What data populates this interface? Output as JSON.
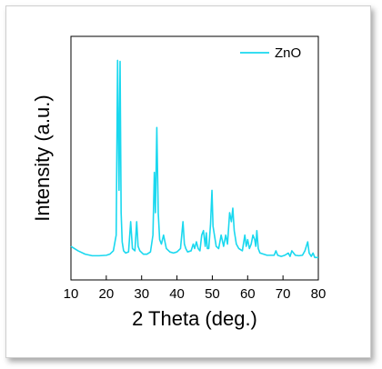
{
  "colors": {
    "series": "#1ad8ef",
    "axis": "#000000"
  },
  "chart_data": {
    "type": "line",
    "title": "",
    "xlabel": "2 Theta (deg.)",
    "ylabel": "Intensity (a.u.)",
    "xlim": [
      10,
      80
    ],
    "ylim": [
      0,
      1
    ],
    "x_ticks": [
      10,
      20,
      30,
      40,
      50,
      60,
      70,
      80
    ],
    "y_ticks": [],
    "grid": false,
    "legend_position": "top-right",
    "series": [
      {
        "name": "ZnO",
        "x": [
          10,
          12,
          14,
          16,
          18,
          20,
          21,
          22,
          22.8,
          23.2,
          23.6,
          23.9,
          24.2,
          24.5,
          24.9,
          25.5,
          26.3,
          26.9,
          27.4,
          28.1,
          28.6,
          29.0,
          29.5,
          30.5,
          31.5,
          32.5,
          33.2,
          33.6,
          33.9,
          34.3,
          34.7,
          35.1,
          35.6,
          36.2,
          37.0,
          38.0,
          39.0,
          40.0,
          41.0,
          41.7,
          42.1,
          42.5,
          43.0,
          44.0,
          44.6,
          45.0,
          45.5,
          46.0,
          46.5,
          47.0,
          47.5,
          48.0,
          48.3,
          48.6,
          49.0,
          49.5,
          49.9,
          50.2,
          50.6,
          51.1,
          51.8,
          52.5,
          53.2,
          53.8,
          54.3,
          54.9,
          55.4,
          55.8,
          56.2,
          56.8,
          57.5,
          58.5,
          59.2,
          59.6,
          60.0,
          60.5,
          61.0,
          61.5,
          62.0,
          62.3,
          62.6,
          63.0,
          63.5,
          64.5,
          65.5,
          66.5,
          67.5,
          68.0,
          68.5,
          69.5,
          70.5,
          71.5,
          72.0,
          72.5,
          73.5,
          74.5,
          75.5,
          76.2,
          76.6,
          77.0,
          77.4,
          78.0,
          78.5,
          79.0,
          80.0
        ],
        "y": [
          0.15,
          0.13,
          0.115,
          0.108,
          0.108,
          0.11,
          0.115,
          0.13,
          0.2,
          0.98,
          0.4,
          0.975,
          0.3,
          0.17,
          0.13,
          0.12,
          0.125,
          0.26,
          0.14,
          0.13,
          0.26,
          0.15,
          0.13,
          0.115,
          0.115,
          0.125,
          0.2,
          0.48,
          0.3,
          0.68,
          0.3,
          0.18,
          0.16,
          0.2,
          0.14,
          0.125,
          0.12,
          0.125,
          0.14,
          0.26,
          0.16,
          0.14,
          0.125,
          0.13,
          0.16,
          0.14,
          0.17,
          0.14,
          0.13,
          0.2,
          0.22,
          0.15,
          0.21,
          0.14,
          0.14,
          0.25,
          0.4,
          0.24,
          0.2,
          0.15,
          0.14,
          0.2,
          0.15,
          0.2,
          0.16,
          0.3,
          0.26,
          0.32,
          0.22,
          0.16,
          0.14,
          0.13,
          0.2,
          0.15,
          0.18,
          0.14,
          0.16,
          0.2,
          0.18,
          0.15,
          0.22,
          0.14,
          0.12,
          0.115,
          0.11,
          0.11,
          0.11,
          0.13,
          0.11,
          0.105,
          0.11,
          0.12,
          0.105,
          0.13,
          0.11,
          0.108,
          0.11,
          0.13,
          0.15,
          0.17,
          0.12,
          0.105,
          0.12,
          0.1,
          0.1
        ]
      }
    ]
  }
}
